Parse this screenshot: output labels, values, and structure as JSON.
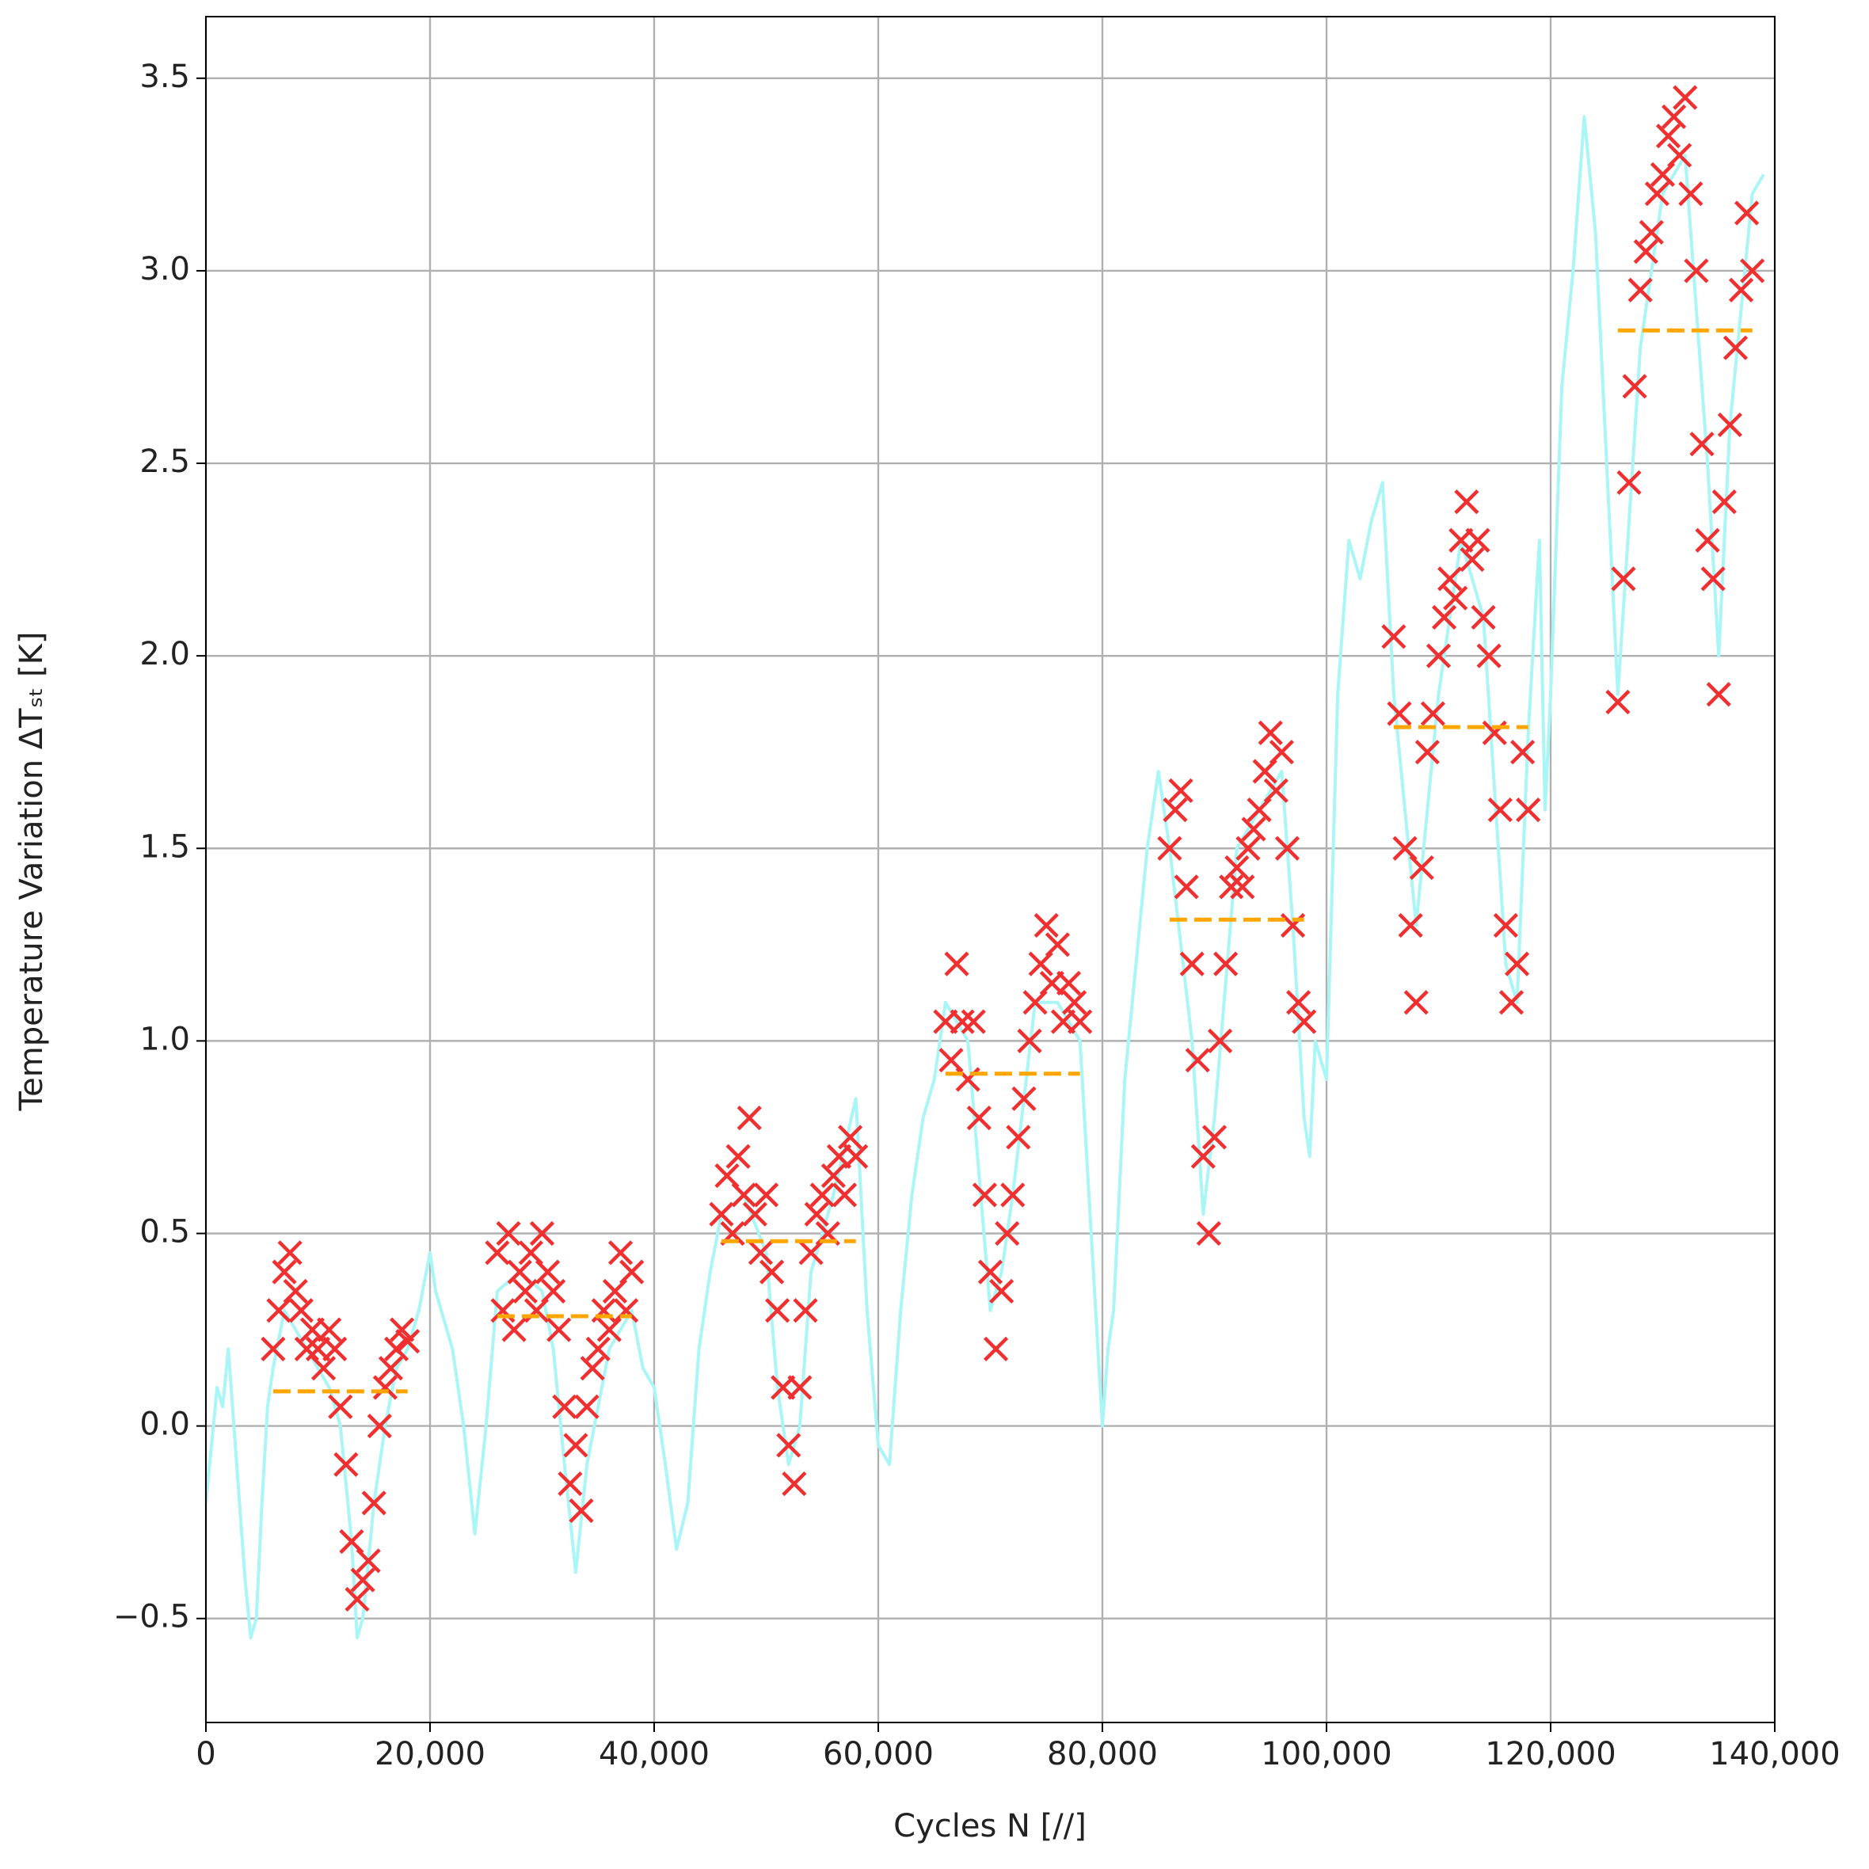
{
  "chart_data": {
    "type": "scatter",
    "xlabel": "Cycles N [//]",
    "ylabel": "Temperature Variation ΔTₛₜ [K]",
    "xlim": [
      0,
      140000
    ],
    "ylim": [
      -0.77,
      3.66
    ],
    "xticks": [
      0,
      {
        "value": 20000,
        "label": "20,000"
      },
      {
        "value": 40000,
        "label": "40,000"
      },
      {
        "value": 60000,
        "label": "60,000"
      },
      {
        "value": 80000,
        "label": "80,000"
      },
      {
        "value": 100000,
        "label": "100,000"
      },
      {
        "value": 120000,
        "label": "120,000"
      },
      {
        "value": 140000,
        "label": "140,000"
      }
    ],
    "yticks": [
      {
        "value": -0.5,
        "label": "−0.5"
      },
      {
        "value": 0,
        "label": "0.0"
      },
      0.5,
      {
        "value": 1,
        "label": "1.0"
      },
      1.5,
      {
        "value": 2,
        "label": "2.0"
      },
      2.5,
      {
        "value": 3,
        "label": "3.0"
      },
      3.5
    ],
    "grid": true,
    "series": [
      {
        "type": "line",
        "color": "#aaf5f5",
        "x": [
          0,
          500,
          1000,
          1500,
          2000,
          2500,
          3000,
          3500,
          4000,
          4500,
          5000,
          5500,
          6000,
          7000,
          8000,
          9000,
          10000,
          11000,
          12000,
          13000,
          13500,
          14000,
          15000,
          16000,
          17000,
          18000,
          19000,
          20000,
          20500,
          21000,
          22000,
          23000,
          24000,
          25000,
          26000,
          28000,
          30000,
          31000,
          32000,
          33000,
          34000,
          36000,
          38000,
          39000,
          40000,
          41000,
          42000,
          43000,
          44000,
          45000,
          46000,
          48000,
          50000,
          51000,
          52000,
          53000,
          54000,
          56000,
          58000,
          59000,
          60000,
          61000,
          62000,
          63000,
          64000,
          65000,
          66000,
          68000,
          70000,
          71000,
          72000,
          74000,
          76000,
          78000,
          79000,
          80000,
          80500,
          81000,
          82000,
          83000,
          84000,
          85000,
          86000,
          88000,
          89000,
          90000,
          92000,
          94000,
          96000,
          97000,
          98000,
          98500,
          99000,
          100000,
          101000,
          102000,
          103000,
          104000,
          105000,
          106000,
          108000,
          110000,
          112000,
          114000,
          116000,
          117000,
          118000,
          119000,
          119500,
          120000,
          121000,
          122000,
          123000,
          124000,
          125000,
          126000,
          128000,
          130000,
          132000,
          134000,
          135000,
          136000,
          137000,
          138000,
          139000
        ],
        "values": [
          -0.2,
          -0.05,
          0.1,
          0.05,
          0.2,
          0.0,
          -0.2,
          -0.4,
          -0.55,
          -0.5,
          -0.2,
          0.05,
          0.15,
          0.3,
          0.25,
          0.2,
          0.15,
          0.1,
          0.0,
          -0.3,
          -0.55,
          -0.5,
          -0.2,
          0.0,
          0.15,
          0.2,
          0.3,
          0.45,
          0.35,
          0.3,
          0.2,
          0.0,
          -0.28,
          0.0,
          0.35,
          0.4,
          0.35,
          0.2,
          -0.1,
          -0.38,
          -0.1,
          0.2,
          0.3,
          0.15,
          0.1,
          -0.1,
          -0.32,
          -0.2,
          0.2,
          0.4,
          0.55,
          0.6,
          0.45,
          0.1,
          -0.1,
          0.0,
          0.4,
          0.6,
          0.85,
          0.3,
          -0.05,
          -0.1,
          0.3,
          0.6,
          0.8,
          0.9,
          1.1,
          1.0,
          0.3,
          0.4,
          0.6,
          1.1,
          1.1,
          1.0,
          0.5,
          0.0,
          0.2,
          0.3,
          0.9,
          1.2,
          1.5,
          1.7,
          1.5,
          1.0,
          0.55,
          0.8,
          1.5,
          1.6,
          1.7,
          1.3,
          0.8,
          0.7,
          1.0,
          0.9,
          1.9,
          2.3,
          2.2,
          2.35,
          2.45,
          1.9,
          1.3,
          1.9,
          2.3,
          2.1,
          1.2,
          1.1,
          1.8,
          2.3,
          1.6,
          1.9,
          2.7,
          3.0,
          3.4,
          3.1,
          2.5,
          1.9,
          2.8,
          3.2,
          3.3,
          2.5,
          2.0,
          2.6,
          2.9,
          3.2,
          3.25
        ]
      },
      {
        "type": "scatter",
        "color": "#f03030",
        "marker": "x",
        "x": [
          6000,
          6500,
          7000,
          7500,
          8000,
          8500,
          9000,
          9500,
          10000,
          10500,
          11000,
          11500,
          12000,
          12500,
          13000,
          13500,
          14000,
          14500,
          15000,
          15500,
          16000,
          16500,
          17000,
          17500,
          18000,
          26000,
          26500,
          27000,
          27500,
          28000,
          28500,
          29000,
          29500,
          30000,
          30500,
          31000,
          31500,
          32000,
          32500,
          33000,
          33500,
          34000,
          34500,
          35000,
          35500,
          36000,
          36500,
          37000,
          37500,
          38000,
          46000,
          46500,
          47000,
          47500,
          48000,
          48500,
          49000,
          49500,
          50000,
          50500,
          51000,
          51500,
          52000,
          52500,
          53000,
          53500,
          54000,
          54500,
          55000,
          55500,
          56000,
          56500,
          57000,
          57500,
          58000,
          66000,
          66500,
          67000,
          67500,
          68000,
          68500,
          69000,
          69500,
          70000,
          70500,
          71000,
          71500,
          72000,
          72500,
          73000,
          73500,
          74000,
          74500,
          75000,
          75500,
          76000,
          76500,
          77000,
          77500,
          78000,
          86000,
          86500,
          87000,
          87500,
          88000,
          88500,
          89000,
          89500,
          90000,
          90500,
          91000,
          91500,
          92000,
          92500,
          93000,
          93500,
          94000,
          94500,
          95000,
          95500,
          96000,
          96500,
          97000,
          97500,
          98000,
          106000,
          106500,
          107000,
          107500,
          108000,
          108500,
          109000,
          109500,
          110000,
          110500,
          111000,
          111500,
          112000,
          112500,
          113000,
          113500,
          114000,
          114500,
          115000,
          115500,
          116000,
          116500,
          117000,
          117500,
          118000,
          126000,
          126500,
          127000,
          127500,
          128000,
          128500,
          129000,
          129500,
          130000,
          130500,
          131000,
          131500,
          132000,
          132500,
          133000,
          133500,
          134000,
          134500,
          135000,
          135500,
          136000,
          136500,
          137000,
          137500,
          138000
        ],
        "values": [
          0.2,
          0.3,
          0.4,
          0.45,
          0.35,
          0.3,
          0.2,
          0.25,
          0.2,
          0.15,
          0.25,
          0.2,
          0.05,
          -0.1,
          -0.3,
          -0.45,
          -0.4,
          -0.35,
          -0.2,
          0.0,
          0.1,
          0.15,
          0.2,
          0.25,
          0.22,
          0.45,
          0.3,
          0.5,
          0.25,
          0.4,
          0.35,
          0.45,
          0.3,
          0.5,
          0.4,
          0.35,
          0.25,
          0.05,
          -0.15,
          -0.05,
          -0.22,
          0.05,
          0.15,
          0.2,
          0.3,
          0.25,
          0.35,
          0.45,
          0.3,
          0.4,
          0.55,
          0.65,
          0.5,
          0.7,
          0.6,
          0.8,
          0.55,
          0.45,
          0.6,
          0.4,
          0.3,
          0.1,
          -0.05,
          -0.15,
          0.1,
          0.3,
          0.45,
          0.55,
          0.6,
          0.5,
          0.65,
          0.7,
          0.6,
          0.75,
          0.7,
          1.05,
          0.95,
          1.2,
          1.05,
          0.9,
          1.05,
          0.8,
          0.6,
          0.4,
          0.2,
          0.35,
          0.5,
          0.6,
          0.75,
          0.85,
          1.0,
          1.1,
          1.2,
          1.3,
          1.15,
          1.25,
          1.05,
          1.15,
          1.1,
          1.05,
          1.5,
          1.6,
          1.65,
          1.4,
          1.2,
          0.95,
          0.7,
          0.5,
          0.75,
          1.0,
          1.2,
          1.4,
          1.45,
          1.4,
          1.5,
          1.55,
          1.6,
          1.7,
          1.8,
          1.65,
          1.75,
          1.5,
          1.3,
          1.1,
          1.05,
          2.05,
          1.85,
          1.5,
          1.3,
          1.1,
          1.45,
          1.75,
          1.85,
          2.0,
          2.1,
          2.2,
          2.15,
          2.3,
          2.4,
          2.25,
          2.3,
          2.1,
          2.0,
          1.8,
          1.6,
          1.3,
          1.1,
          1.2,
          1.75,
          1.6,
          1.88,
          2.2,
          2.45,
          2.7,
          2.95,
          3.05,
          3.1,
          3.2,
          3.25,
          3.35,
          3.4,
          3.3,
          3.45,
          3.2,
          3.0,
          2.55,
          2.3,
          2.2,
          1.9,
          2.4,
          2.6,
          2.8,
          2.95,
          3.15,
          3.0
        ]
      },
      {
        "type": "line",
        "color": "#ffa500",
        "dash": "dashed",
        "x": [
          6000,
          18000,
          22000,
          26000,
          38000,
          42000,
          46000,
          58000,
          62000,
          66000,
          78000,
          82000,
          86000,
          98000,
          102000,
          106000,
          118000,
          122000,
          126000,
          138000
        ],
        "values": [
          0.09,
          0.09,
          null,
          0.285,
          0.285,
          null,
          0.48,
          0.48,
          null,
          0.915,
          0.915,
          null,
          1.315,
          1.315,
          null,
          1.815,
          1.815,
          null,
          2.845,
          2.845
        ]
      }
    ]
  }
}
